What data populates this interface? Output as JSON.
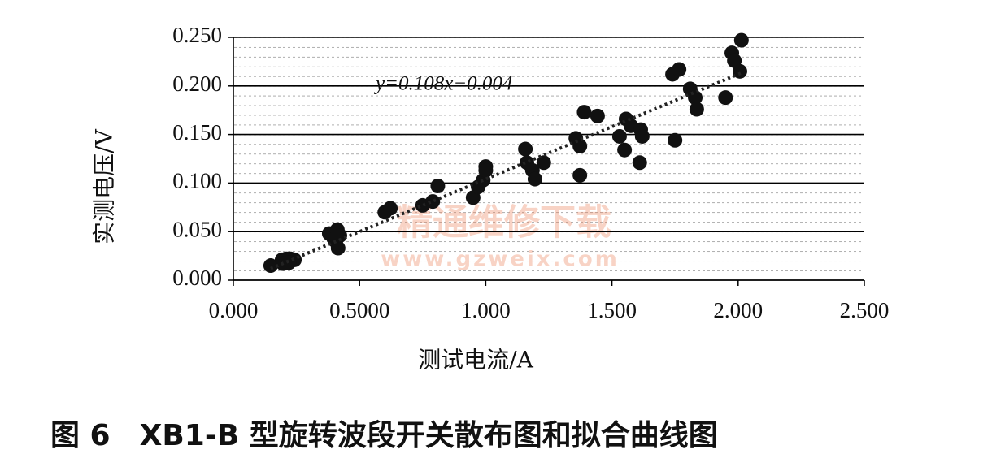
{
  "chart_data": {
    "type": "scatter",
    "xlabel": "测试电流/A",
    "ylabel": "实测电压/V",
    "caption": "图 6　XB1-B 型旋转波段开关散布图和拟合曲线图",
    "watermark": [
      "精通维修下载",
      "www.gzweix.com"
    ],
    "trendline": {
      "slope": 0.108,
      "intercept": -0.004,
      "label": "y=0.108x−0.004"
    },
    "color": "#111111",
    "grid": true,
    "xlim": [
      0,
      2.5
    ],
    "ylim": [
      0,
      0.25
    ],
    "xticks": [
      {
        "value": 0,
        "label": "0.000"
      },
      {
        "value": 0.5,
        "label": "0.5000"
      },
      {
        "value": 1,
        "label": "1.000"
      },
      {
        "value": 1.5,
        "label": "1.500"
      },
      {
        "value": 2,
        "label": "2.000"
      },
      {
        "value": 2.5,
        "label": "2.500"
      }
    ],
    "yticks": [
      {
        "value": 0,
        "label": "0.000"
      },
      {
        "value": 0.05,
        "label": "0.050"
      },
      {
        "value": 0.1,
        "label": "0.100"
      },
      {
        "value": 0.15,
        "label": "0.150"
      },
      {
        "value": 0.2,
        "label": "0.200"
      },
      {
        "value": 0.25,
        "label": "0.250"
      }
    ],
    "x": [
      0.148,
      0.193,
      0.21,
      0.226,
      0.242,
      0.197,
      0.22,
      0.38,
      0.396,
      0.412,
      0.406,
      0.415,
      0.422,
      0.6,
      0.622,
      0.75,
      0.79,
      0.81,
      0.95,
      0.97,
      0.99,
      1.0,
      1.0,
      1.157,
      1.163,
      1.185,
      1.195,
      1.23,
      1.357,
      1.373,
      1.373,
      1.39,
      1.443,
      1.53,
      1.55,
      1.556,
      1.575,
      1.61,
      1.614,
      1.62,
      1.74,
      1.75,
      1.766,
      1.81,
      1.83,
      1.836,
      1.95,
      1.975,
      1.985,
      2.007,
      2.013
    ],
    "y": [
      0.015,
      0.021,
      0.022,
      0.022,
      0.021,
      0.017,
      0.018,
      0.048,
      0.044,
      0.052,
      0.04,
      0.033,
      0.046,
      0.07,
      0.074,
      0.077,
      0.081,
      0.097,
      0.085,
      0.096,
      0.103,
      0.117,
      0.113,
      0.135,
      0.121,
      0.113,
      0.104,
      0.121,
      0.146,
      0.138,
      0.108,
      0.173,
      0.169,
      0.148,
      0.134,
      0.166,
      0.159,
      0.121,
      0.155,
      0.148,
      0.212,
      0.144,
      0.217,
      0.197,
      0.188,
      0.176,
      0.188,
      0.234,
      0.226,
      0.215,
      0.247
    ]
  }
}
